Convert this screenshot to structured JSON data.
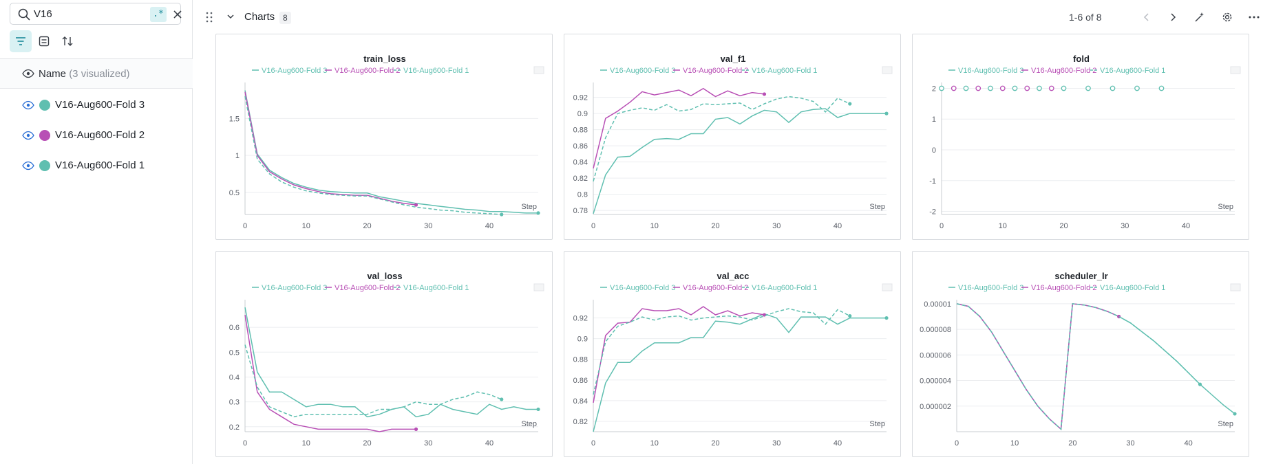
{
  "search": {
    "query": "V16",
    "regex_label": ".*"
  },
  "runs_header": {
    "label": "Name",
    "visualized": "(3 visualized)"
  },
  "runs": [
    {
      "name": "V16-Aug600-Fold 3",
      "color": "#5fbfb0"
    },
    {
      "name": "V16-Aug600-Fold 2",
      "color": "#b84fb5"
    },
    {
      "name": "V16-Aug600-Fold 1",
      "color": "#5fbfb0"
    }
  ],
  "section": {
    "title": "Charts",
    "count": "8",
    "pager": "1-6 of 8"
  },
  "legend": [
    "V16-Aug600-Fold 3",
    "V16-Aug600-Fold 2",
    "V16-Aug600-Fold 1"
  ],
  "colors": {
    "fold3": "#5fbfb0",
    "fold2": "#b84fb5",
    "fold1": "#5fbfb0",
    "accent": "#1a8a99"
  },
  "chart_data": [
    {
      "type": "line",
      "title": "train_loss",
      "xlabel": "Step",
      "xlim": [
        0,
        48
      ],
      "ylim": [
        0.2,
        1.95
      ],
      "xticks": [
        0,
        10,
        20,
        30,
        40
      ],
      "yticks": [
        0.5,
        1,
        1.5
      ],
      "series": [
        {
          "name": "V16-Aug600-Fold 3",
          "style": "solid",
          "x": [
            0,
            2,
            4,
            6,
            8,
            10,
            12,
            14,
            16,
            18,
            20,
            22,
            24,
            26,
            28,
            30,
            32,
            34,
            36,
            38,
            40,
            42,
            44,
            46,
            48
          ],
          "y": [
            1.88,
            1.02,
            0.8,
            0.7,
            0.62,
            0.57,
            0.53,
            0.51,
            0.5,
            0.49,
            0.49,
            0.44,
            0.41,
            0.38,
            0.35,
            0.33,
            0.31,
            0.29,
            0.27,
            0.26,
            0.24,
            0.24,
            0.23,
            0.22,
            0.22
          ]
        },
        {
          "name": "V16-Aug600-Fold 2",
          "style": "solid",
          "x": [
            0,
            2,
            4,
            6,
            8,
            10,
            12,
            14,
            16,
            18,
            20,
            22,
            24,
            26,
            28
          ],
          "y": [
            1.86,
            1.0,
            0.78,
            0.68,
            0.6,
            0.55,
            0.51,
            0.48,
            0.47,
            0.46,
            0.46,
            0.42,
            0.38,
            0.35,
            0.33
          ]
        },
        {
          "name": "V16-Aug600-Fold 1",
          "style": "dash",
          "x": [
            0,
            2,
            4,
            6,
            8,
            10,
            12,
            14,
            16,
            18,
            20,
            22,
            24,
            26,
            28,
            30,
            32,
            34,
            36,
            38,
            40,
            42
          ],
          "y": [
            1.8,
            0.95,
            0.75,
            0.64,
            0.57,
            0.52,
            0.49,
            0.47,
            0.46,
            0.45,
            0.45,
            0.41,
            0.37,
            0.33,
            0.3,
            0.28,
            0.26,
            0.25,
            0.23,
            0.22,
            0.21,
            0.2
          ]
        }
      ]
    },
    {
      "type": "line",
      "title": "val_f1",
      "xlabel": "Step",
      "xlim": [
        0,
        48
      ],
      "ylim": [
        0.775,
        0.935
      ],
      "xticks": [
        0,
        10,
        20,
        30,
        40
      ],
      "yticks": [
        0.78,
        0.8,
        0.82,
        0.84,
        0.86,
        0.88,
        0.9,
        0.92
      ],
      "series": [
        {
          "name": "V16-Aug600-Fold 3",
          "style": "solid",
          "x": [
            0,
            2,
            4,
            6,
            8,
            10,
            12,
            14,
            16,
            18,
            20,
            22,
            24,
            26,
            28,
            30,
            32,
            34,
            36,
            38,
            40,
            42,
            44,
            46,
            48
          ],
          "y": [
            0.776,
            0.824,
            0.846,
            0.847,
            0.858,
            0.868,
            0.869,
            0.868,
            0.875,
            0.875,
            0.893,
            0.895,
            0.887,
            0.897,
            0.904,
            0.902,
            0.889,
            0.902,
            0.905,
            0.906,
            0.895,
            0.9,
            0.9,
            0.9,
            0.9
          ]
        },
        {
          "name": "V16-Aug600-Fold 2",
          "style": "solid",
          "x": [
            0,
            2,
            4,
            6,
            8,
            10,
            12,
            14,
            16,
            18,
            20,
            22,
            24,
            26,
            28
          ],
          "y": [
            0.832,
            0.894,
            0.903,
            0.914,
            0.927,
            0.923,
            0.926,
            0.929,
            0.922,
            0.931,
            0.921,
            0.928,
            0.922,
            0.926,
            0.924
          ]
        },
        {
          "name": "V16-Aug600-Fold 1",
          "style": "dash",
          "x": [
            0,
            2,
            4,
            6,
            8,
            10,
            12,
            14,
            16,
            18,
            20,
            22,
            24,
            26,
            28,
            30,
            32,
            34,
            36,
            38,
            40,
            42
          ],
          "y": [
            0.816,
            0.87,
            0.9,
            0.904,
            0.907,
            0.904,
            0.911,
            0.903,
            0.905,
            0.912,
            0.911,
            0.912,
            0.913,
            0.905,
            0.912,
            0.918,
            0.921,
            0.919,
            0.915,
            0.902,
            0.919,
            0.912
          ]
        }
      ]
    },
    {
      "type": "scatter",
      "title": "fold",
      "xlabel": "Step",
      "xlim": [
        0,
        48
      ],
      "ylim": [
        -2.1,
        2.1
      ],
      "xticks": [
        0,
        10,
        20,
        30,
        40
      ],
      "yticks": [
        -2,
        -1,
        0,
        1,
        2
      ],
      "series": [
        {
          "name": "V16-Aug600-Fold 3",
          "style": "marker",
          "x": [
            0,
            4,
            8,
            12,
            16,
            20,
            24,
            28,
            32,
            36
          ],
          "y": [
            2,
            2,
            2,
            2,
            2,
            2,
            2,
            2,
            2,
            2
          ]
        },
        {
          "name": "V16-Aug600-Fold 2",
          "style": "marker",
          "x": [
            2,
            6,
            10,
            14,
            18
          ],
          "y": [
            2,
            2,
            2,
            2,
            2
          ]
        },
        {
          "name": "V16-Aug600-Fold 1",
          "style": "marker",
          "x": [],
          "y": []
        }
      ]
    },
    {
      "type": "line",
      "title": "val_loss",
      "xlabel": "Step",
      "xlim": [
        0,
        48
      ],
      "ylim": [
        0.18,
        0.7
      ],
      "xticks": [
        0,
        10,
        20,
        30,
        40
      ],
      "yticks": [
        0.2,
        0.3,
        0.4,
        0.5,
        0.6
      ],
      "series": [
        {
          "name": "V16-Aug600-Fold 3",
          "style": "solid",
          "x": [
            0,
            2,
            4,
            6,
            8,
            10,
            12,
            14,
            16,
            18,
            20,
            22,
            24,
            26,
            28,
            30,
            32,
            34,
            36,
            38,
            40,
            42,
            44,
            46,
            48
          ],
          "y": [
            0.68,
            0.42,
            0.34,
            0.34,
            0.31,
            0.28,
            0.29,
            0.29,
            0.28,
            0.28,
            0.24,
            0.25,
            0.27,
            0.28,
            0.24,
            0.25,
            0.29,
            0.27,
            0.26,
            0.25,
            0.29,
            0.27,
            0.28,
            0.27,
            0.27
          ]
        },
        {
          "name": "V16-Aug600-Fold 2",
          "style": "solid",
          "x": [
            0,
            2,
            4,
            6,
            8,
            10,
            12,
            14,
            16,
            18,
            20,
            22,
            24,
            26,
            28
          ],
          "y": [
            0.65,
            0.34,
            0.27,
            0.24,
            0.21,
            0.2,
            0.19,
            0.19,
            0.19,
            0.19,
            0.19,
            0.18,
            0.19,
            0.19,
            0.19
          ]
        },
        {
          "name": "V16-Aug600-Fold 1",
          "style": "dash",
          "x": [
            0,
            2,
            4,
            6,
            8,
            10,
            12,
            14,
            16,
            18,
            20,
            22,
            24,
            26,
            28,
            30,
            32,
            34,
            36,
            38,
            40,
            42
          ],
          "y": [
            0.53,
            0.36,
            0.28,
            0.26,
            0.24,
            0.25,
            0.25,
            0.25,
            0.25,
            0.25,
            0.25,
            0.27,
            0.27,
            0.28,
            0.3,
            0.29,
            0.29,
            0.31,
            0.32,
            0.34,
            0.33,
            0.31
          ]
        }
      ]
    },
    {
      "type": "line",
      "title": "val_acc",
      "xlabel": "Step",
      "xlim": [
        0,
        48
      ],
      "ylim": [
        0.81,
        0.935
      ],
      "xticks": [
        0,
        10,
        20,
        30,
        40
      ],
      "yticks": [
        0.82,
        0.84,
        0.86,
        0.88,
        0.9,
        0.92
      ],
      "series": [
        {
          "name": "V16-Aug600-Fold 3",
          "style": "solid",
          "x": [
            0,
            2,
            4,
            6,
            8,
            10,
            12,
            14,
            16,
            18,
            20,
            22,
            24,
            26,
            28,
            30,
            32,
            34,
            36,
            38,
            40,
            42,
            44,
            46,
            48
          ],
          "y": [
            0.81,
            0.857,
            0.877,
            0.877,
            0.888,
            0.896,
            0.896,
            0.896,
            0.901,
            0.901,
            0.917,
            0.916,
            0.914,
            0.919,
            0.924,
            0.92,
            0.906,
            0.921,
            0.921,
            0.921,
            0.914,
            0.92,
            0.92,
            0.92,
            0.92
          ]
        },
        {
          "name": "V16-Aug600-Fold 2",
          "style": "solid",
          "x": [
            0,
            2,
            4,
            6,
            8,
            10,
            12,
            14,
            16,
            18,
            20,
            22,
            24,
            26,
            28
          ],
          "y": [
            0.838,
            0.903,
            0.915,
            0.916,
            0.929,
            0.927,
            0.927,
            0.929,
            0.923,
            0.931,
            0.923,
            0.927,
            0.922,
            0.925,
            0.923
          ]
        },
        {
          "name": "V16-Aug600-Fold 1",
          "style": "dash",
          "x": [
            0,
            2,
            4,
            6,
            8,
            10,
            12,
            14,
            16,
            18,
            20,
            22,
            24,
            26,
            28,
            30,
            32,
            34,
            36,
            38,
            40,
            42
          ],
          "y": [
            0.846,
            0.897,
            0.912,
            0.916,
            0.921,
            0.918,
            0.921,
            0.922,
            0.918,
            0.92,
            0.921,
            0.922,
            0.921,
            0.918,
            0.922,
            0.926,
            0.929,
            0.926,
            0.925,
            0.914,
            0.928,
            0.922
          ]
        }
      ]
    },
    {
      "type": "line",
      "title": "scheduler_lr",
      "xlabel": "Step",
      "xlim": [
        0,
        48
      ],
      "ylim": [
        0,
        1.01e-05
      ],
      "xticks": [
        0,
        10,
        20,
        30,
        40
      ],
      "yticks": [
        2e-06,
        4e-06,
        6e-06,
        8e-06,
        1e-05
      ],
      "ytick_labels": [
        "0.000002",
        "0.000004",
        "0.000006",
        "0.000008",
        "0.00001"
      ],
      "series": [
        {
          "name": "V16-Aug600-Fold 3",
          "style": "solid",
          "x": [
            0,
            2,
            4,
            6,
            8,
            10,
            12,
            14,
            16,
            18,
            20,
            22,
            24,
            26,
            28,
            30,
            32,
            34,
            36,
            38,
            40,
            42,
            44,
            46,
            48
          ],
          "y": [
            1e-05,
            9.8e-06,
            9e-06,
            7.8e-06,
            6.3e-06,
            4.8e-06,
            3.3e-06,
            2e-06,
            1e-06,
            2e-07,
            1e-05,
            9.9e-06,
            9.7e-06,
            9.4e-06,
            9e-06,
            8.5e-06,
            7.8e-06,
            7.1e-06,
            6.3e-06,
            5.5e-06,
            4.6e-06,
            3.7e-06,
            2.9e-06,
            2.1e-06,
            1.4e-06
          ]
        },
        {
          "name": "V16-Aug600-Fold 2",
          "style": "solid",
          "x": [
            0,
            2,
            4,
            6,
            8,
            10,
            12,
            14,
            16,
            18,
            20,
            22,
            24,
            26,
            28
          ],
          "y": [
            1e-05,
            9.8e-06,
            9e-06,
            7.8e-06,
            6.3e-06,
            4.8e-06,
            3.3e-06,
            2e-06,
            1e-06,
            2e-07,
            1e-05,
            9.9e-06,
            9.7e-06,
            9.4e-06,
            9e-06
          ]
        },
        {
          "name": "V16-Aug600-Fold 1",
          "style": "dash",
          "x": [
            0,
            2,
            4,
            6,
            8,
            10,
            12,
            14,
            16,
            18,
            20,
            22,
            24,
            26,
            28,
            30,
            32,
            34,
            36,
            38,
            40,
            42
          ],
          "y": [
            1e-05,
            9.8e-06,
            9e-06,
            7.8e-06,
            6.3e-06,
            4.8e-06,
            3.3e-06,
            2e-06,
            1e-06,
            2e-07,
            1e-05,
            9.9e-06,
            9.7e-06,
            9.4e-06,
            9e-06,
            8.5e-06,
            7.8e-06,
            7.1e-06,
            6.3e-06,
            5.5e-06,
            4.6e-06,
            3.7e-06
          ]
        }
      ]
    }
  ]
}
